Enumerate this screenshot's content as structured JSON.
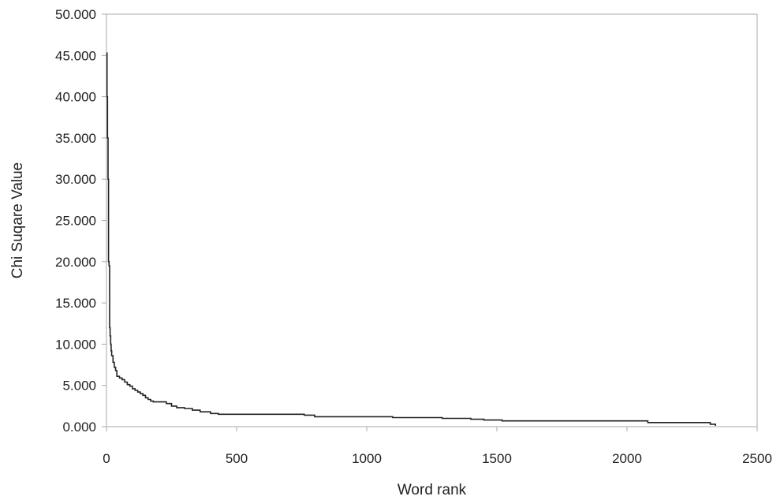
{
  "chart_data": {
    "type": "line",
    "title": "",
    "xlabel": "Word rank",
    "ylabel": "Chi Suqare Value",
    "xlim": [
      0,
      2500
    ],
    "ylim": [
      0,
      50
    ],
    "x_ticks": [
      {
        "value": 0,
        "label": "0"
      },
      {
        "value": 500,
        "label": "500"
      },
      {
        "value": 1000,
        "label": "1000"
      },
      {
        "value": 1500,
        "label": "1500"
      },
      {
        "value": 2000,
        "label": "2000"
      },
      {
        "value": 2500,
        "label": "2500"
      }
    ],
    "y_ticks": [
      {
        "value": 0,
        "label": "0.000"
      },
      {
        "value": 5,
        "label": "5.000"
      },
      {
        "value": 10,
        "label": "10.000"
      },
      {
        "value": 15,
        "label": "15.000"
      },
      {
        "value": 20,
        "label": "20.000"
      },
      {
        "value": 25,
        "label": "25.000"
      },
      {
        "value": 30,
        "label": "30.000"
      },
      {
        "value": 35,
        "label": "35.000"
      },
      {
        "value": 40,
        "label": "40.000"
      },
      {
        "value": 45,
        "label": "45.000"
      },
      {
        "value": 50,
        "label": "50.000"
      }
    ],
    "grid": false,
    "legend": "none",
    "line_color": "#222222",
    "series": [
      {
        "x": [
          1,
          2,
          4,
          6,
          8,
          10,
          12,
          14,
          16,
          18,
          20,
          25,
          30,
          35,
          40,
          50,
          60,
          70,
          80,
          90,
          100,
          110,
          120,
          130,
          140,
          150,
          160,
          170,
          180,
          200,
          230,
          250,
          270,
          300,
          330,
          360,
          400,
          430,
          500,
          600,
          700,
          760,
          800,
          900,
          1000,
          1100,
          1200,
          1290,
          1400,
          1450,
          1500,
          1520,
          1600,
          1700,
          1800,
          1900,
          2000,
          2080,
          2100,
          2200,
          2300,
          2320,
          2340
        ],
        "y": [
          45.3,
          40.0,
          35.0,
          30.0,
          20.0,
          19.5,
          12.0,
          11.0,
          10.0,
          9.2,
          8.6,
          7.8,
          7.2,
          6.8,
          6.1,
          5.9,
          5.7,
          5.4,
          5.1,
          4.9,
          4.6,
          4.4,
          4.2,
          4.0,
          3.8,
          3.5,
          3.3,
          3.1,
          3.0,
          3.0,
          2.8,
          2.5,
          2.3,
          2.2,
          2.0,
          1.8,
          1.6,
          1.5,
          1.5,
          1.5,
          1.5,
          1.4,
          1.2,
          1.2,
          1.2,
          1.1,
          1.1,
          1.0,
          0.9,
          0.8,
          0.8,
          0.7,
          0.7,
          0.7,
          0.7,
          0.7,
          0.7,
          0.5,
          0.5,
          0.5,
          0.5,
          0.3,
          0.1
        ]
      }
    ]
  }
}
